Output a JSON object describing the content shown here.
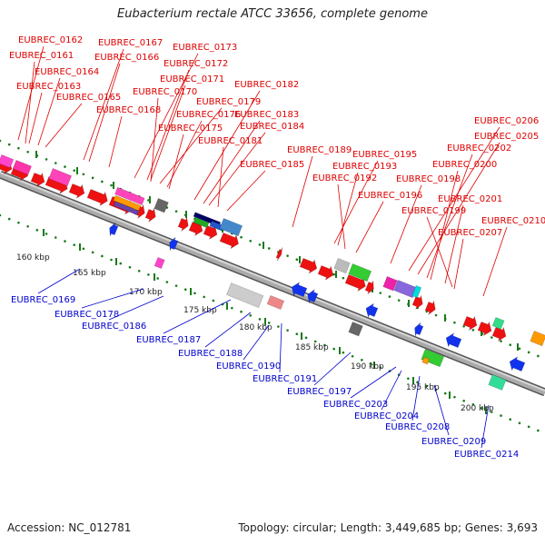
{
  "title": "Eubacterium rectale ATCC 33656, complete genome",
  "footer": {
    "accession": "Accession: NC_012781",
    "topology": "Topology: circular; Length: 3,449,685 bp; Genes: 3,693"
  },
  "colors": {
    "forward_label": "#dd0000",
    "reverse_label": "#0000cc",
    "backbone": "#888888",
    "tick": "#1a7a1a"
  },
  "kbp_ticks": [
    "160 kbp",
    "165 kbp",
    "170 kbp",
    "175 kbp",
    "180 kbp",
    "185 kbp",
    "190 kbp",
    "195 kbp",
    "200 kbp"
  ],
  "forward_labels": [
    "EUBREC_0162",
    "EUBREC_0161",
    "EUBREC_0164",
    "EUBREC_0163",
    "EUBREC_0165",
    "EUBREC_0167",
    "EUBREC_0166",
    "EUBREC_0168",
    "EUBREC_0173",
    "EUBREC_0172",
    "EUBREC_0171",
    "EUBREC_0170",
    "EUBREC_0179",
    "EUBREC_0176",
    "EUBREC_0175",
    "EUBREC_0182",
    "EUBREC_0183",
    "EUBREC_0184",
    "EUBREC_0181",
    "EUBREC_0185",
    "EUBREC_0189",
    "EUBREC_0195",
    "EUBREC_0193",
    "EUBREC_0192",
    "EUBREC_0196",
    "EUBREC_0198",
    "EUBREC_0206",
    "EUBREC_0205",
    "EUBREC_0202",
    "EUBREC_0200",
    "EUBREC_0201",
    "EUBREC_0199",
    "EUBREC_0207",
    "EUBREC_0210"
  ],
  "reverse_labels": [
    "EUBREC_0169",
    "EUBREC_0178",
    "EUBREC_0186",
    "EUBREC_0187",
    "EUBREC_0188",
    "EUBREC_0190",
    "EUBREC_0191",
    "EUBREC_0197",
    "EUBREC_0203",
    "EUBREC_0204",
    "EUBREC_0208",
    "EUBREC_0209",
    "EUBREC_0214"
  ]
}
